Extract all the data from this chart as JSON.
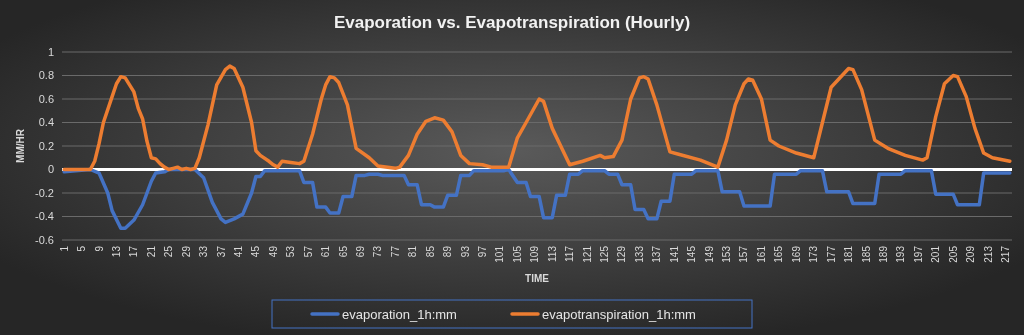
{
  "chart_data": {
    "type": "line",
    "title": "Evaporation vs. Evapotranspiration (Hourly)",
    "xlabel": "TIME",
    "ylabel": "MM/HR",
    "xlim": [
      0.5,
      218.5
    ],
    "xticks": [
      1,
      5,
      9,
      13,
      17,
      21,
      25,
      29,
      33,
      37,
      41,
      45,
      49,
      53,
      57,
      61,
      65,
      69,
      73,
      77,
      81,
      85,
      89,
      93,
      97,
      101,
      105,
      109,
      113,
      117,
      121,
      125,
      129,
      133,
      137,
      141,
      145,
      149,
      153,
      157,
      161,
      165,
      169,
      173,
      177,
      181,
      185,
      189,
      193,
      197,
      201,
      205,
      209,
      213,
      217
    ],
    "ylim": [
      -0.6,
      1
    ],
    "yticks": [
      -0.6,
      -0.4,
      -0.2,
      0,
      0.2,
      0.4,
      0.6,
      0.8,
      1
    ],
    "grid": "y",
    "legend": "bottom",
    "marker": "none",
    "line_style": "solid",
    "series": [
      {
        "name": "evaporation_1h:mm",
        "color": "#4472c4",
        "x": [
          1,
          7,
          9,
          11,
          12,
          14,
          15,
          17,
          19,
          21,
          22,
          24,
          25,
          31,
          33,
          35,
          37,
          38,
          40,
          42,
          44,
          45,
          46,
          47,
          55,
          56,
          58,
          59,
          61,
          62,
          64,
          65,
          67,
          68,
          70,
          71,
          73,
          74,
          79,
          80,
          82,
          83,
          85,
          86,
          88,
          89,
          91,
          92,
          94,
          95,
          102,
          103,
          105,
          107,
          108,
          110,
          111,
          113,
          114,
          116,
          117,
          119,
          120,
          125,
          126,
          128,
          129,
          131,
          132,
          134,
          135,
          137,
          138,
          140,
          141,
          145,
          146,
          151,
          152,
          156,
          157,
          163,
          164,
          169,
          170,
          175,
          176,
          181,
          182,
          187,
          188,
          193,
          194,
          200,
          201,
          205,
          206,
          211,
          212,
          218
        ],
        "values": [
          -0.02,
          0,
          -0.03,
          -0.2,
          -0.35,
          -0.5,
          -0.5,
          -0.43,
          -0.3,
          -0.1,
          -0.03,
          -0.02,
          0,
          0,
          -0.07,
          -0.28,
          -0.42,
          -0.45,
          -0.42,
          -0.38,
          -0.2,
          -0.06,
          -0.06,
          -0.01,
          -0.01,
          -0.11,
          -0.11,
          -0.32,
          -0.32,
          -0.37,
          -0.37,
          -0.23,
          -0.23,
          -0.05,
          -0.05,
          -0.04,
          -0.04,
          -0.05,
          -0.05,
          -0.13,
          -0.13,
          -0.3,
          -0.3,
          -0.32,
          -0.32,
          -0.22,
          -0.22,
          -0.05,
          -0.05,
          -0.01,
          -0.01,
          0,
          -0.11,
          -0.11,
          -0.23,
          -0.23,
          -0.41,
          -0.41,
          -0.22,
          -0.22,
          -0.04,
          -0.04,
          -0.01,
          -0.01,
          -0.04,
          -0.04,
          -0.13,
          -0.13,
          -0.34,
          -0.34,
          -0.42,
          -0.42,
          -0.27,
          -0.27,
          -0.04,
          -0.04,
          -0.01,
          -0.01,
          -0.19,
          -0.19,
          -0.31,
          -0.31,
          -0.04,
          -0.04,
          -0.01,
          -0.01,
          -0.19,
          -0.19,
          -0.29,
          -0.29,
          -0.04,
          -0.04,
          -0.01,
          -0.01,
          -0.21,
          -0.21,
          -0.3,
          -0.3,
          -0.03,
          -0.03
        ]
      },
      {
        "name": "evapotranspiration_1h:mm",
        "color": "#ed7d31",
        "x": [
          1,
          7,
          8,
          9,
          10,
          12,
          13,
          14,
          15,
          17,
          18,
          19,
          20,
          21,
          22,
          23,
          24,
          25,
          26,
          27,
          28,
          29,
          30,
          31,
          32,
          34,
          36,
          38,
          39,
          40,
          42,
          44,
          45,
          46,
          48,
          49,
          50,
          51,
          53,
          55,
          56,
          58,
          60,
          61,
          62,
          63,
          64,
          66,
          68,
          71,
          73,
          77,
          78,
          80,
          82,
          84,
          86,
          88,
          90,
          92,
          94,
          97,
          99,
          103,
          105,
          107,
          110,
          111,
          113,
          117,
          120,
          124,
          125,
          127,
          129,
          131,
          133,
          134,
          135,
          137,
          140,
          142,
          147,
          149,
          151,
          153,
          155,
          157,
          158,
          159,
          161,
          163,
          165,
          169,
          173,
          175,
          177,
          181,
          182,
          184,
          187,
          190,
          194,
          198,
          199,
          201,
          203,
          205,
          206,
          208,
          210,
          212,
          214,
          218
        ],
        "values": [
          0,
          0,
          0.07,
          0.22,
          0.4,
          0.62,
          0.73,
          0.79,
          0.78,
          0.66,
          0.52,
          0.43,
          0.24,
          0.1,
          0.09,
          0.05,
          0.02,
          0,
          0.01,
          0.02,
          0,
          0.01,
          0,
          0.01,
          0.1,
          0.38,
          0.72,
          0.85,
          0.88,
          0.86,
          0.7,
          0.4,
          0.16,
          0.12,
          0.07,
          0.04,
          0.02,
          0.07,
          0.06,
          0.05,
          0.07,
          0.3,
          0.6,
          0.72,
          0.79,
          0.78,
          0.74,
          0.55,
          0.18,
          0.1,
          0.03,
          0.01,
          0.02,
          0.12,
          0.3,
          0.41,
          0.44,
          0.42,
          0.32,
          0.12,
          0.05,
          0.04,
          0.02,
          0.02,
          0.27,
          0.4,
          0.6,
          0.58,
          0.35,
          0.04,
          0.07,
          0.12,
          0.1,
          0.11,
          0.25,
          0.6,
          0.78,
          0.79,
          0.77,
          0.55,
          0.15,
          0.13,
          0.08,
          0.05,
          0.02,
          0.25,
          0.55,
          0.73,
          0.77,
          0.76,
          0.6,
          0.25,
          0.2,
          0.14,
          0.1,
          0.4,
          0.7,
          0.86,
          0.85,
          0.68,
          0.25,
          0.18,
          0.12,
          0.08,
          0.1,
          0.45,
          0.73,
          0.8,
          0.79,
          0.62,
          0.35,
          0.14,
          0.1,
          0.07
        ]
      }
    ]
  }
}
